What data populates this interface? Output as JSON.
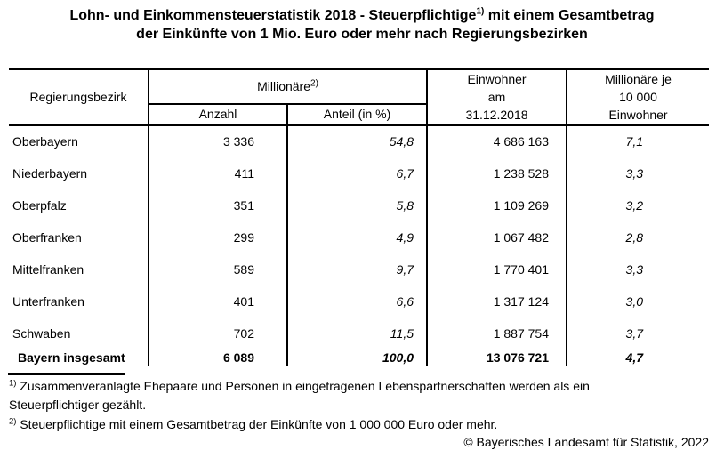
{
  "title": {
    "line1_prefix": "Lohn- und Einkommensteuerstatistik 2018 - Steuerpflichtige",
    "line1_sup": "1)",
    "line1_suffix": " mit einem Gesamtbetrag",
    "line2": "der Einkünfte von 1 Mio. Euro oder mehr nach Regierungsbezirken"
  },
  "table": {
    "header": {
      "regierungsbezirk": "Regierungsbezirk",
      "millionaere": "Millionäre",
      "millionaere_sup": "2)",
      "anzahl": "Anzahl",
      "anteil": "Anteil (in %)",
      "einwohner_line1": "Einwohner",
      "einwohner_line2": "am",
      "einwohner_line3": "31.12.2018",
      "per_10k_line1": "Millionäre je",
      "per_10k_line2": "10 000",
      "per_10k_line3": "Einwohner"
    }
  },
  "chart_data": {
    "type": "table",
    "title": "Lohn- und Einkommensteuerstatistik 2018 - Steuerpflichtige mit einem Gesamtbetrag der Einkünfte von 1 Mio. Euro oder mehr nach Regierungsbezirken",
    "columns": [
      "Regierungsbezirk",
      "Millionäre Anzahl",
      "Millionäre Anteil (in %)",
      "Einwohner am 31.12.2018",
      "Millionäre je 10 000 Einwohner"
    ],
    "rows": [
      [
        "Oberbayern",
        "3 336",
        "54,8",
        "4 686 163",
        "7,1"
      ],
      [
        "Niederbayern",
        "411",
        "6,7",
        "1 238 528",
        "3,3"
      ],
      [
        "Oberpfalz",
        "351",
        "5,8",
        "1 109 269",
        "3,2"
      ],
      [
        "Oberfranken",
        "299",
        "4,9",
        "1 067 482",
        "2,8"
      ],
      [
        "Mittelfranken",
        "589",
        "9,7",
        "1 770 401",
        "3,3"
      ],
      [
        "Unterfranken",
        "401",
        "6,6",
        "1 317 124",
        "3,0"
      ],
      [
        "Schwaben",
        "702",
        "11,5",
        "1 887 754",
        "3,7"
      ]
    ],
    "total_row": [
      "Bayern insgesamt",
      "6 089",
      "100,0",
      "13 076 721",
      "4,7"
    ]
  },
  "footnotes": [
    {
      "marker": "1)",
      "text": " Zusammenveranlagte Ehepaare und Personen in eingetragenen Lebenspartnerschaften werden als ein Steuerpflichtiger gezählt."
    },
    {
      "marker": "2)",
      "text": " Steuerpflichtige mit einem Gesamtbetrag der Einkünfte von 1 000 000 Euro oder mehr."
    }
  ],
  "copyright": "© Bayerisches Landesamt für Statistik, 2022",
  "colors": {
    "text": "#000000",
    "background": "#ffffff",
    "border": "#000000"
  }
}
